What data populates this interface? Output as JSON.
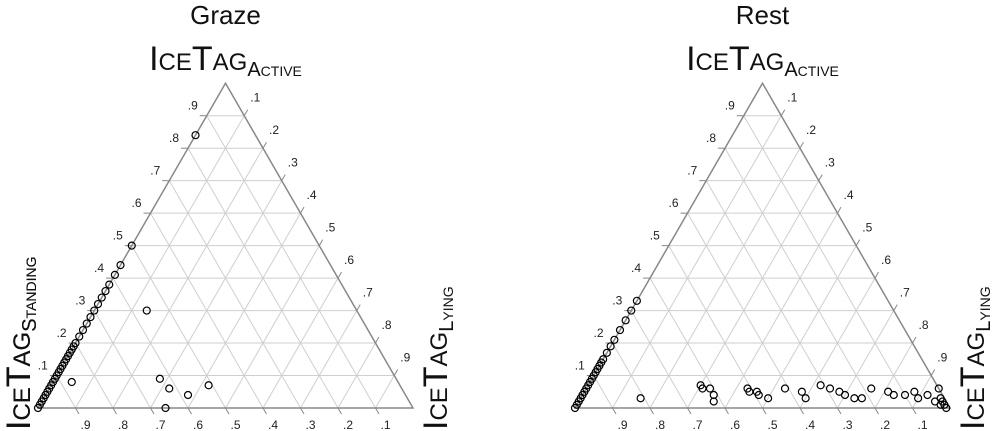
{
  "chart_data": [
    {
      "type": "ternary",
      "title": "Graze",
      "axes": {
        "top": {
          "main": "IceTag",
          "sub": "Active"
        },
        "left": {
          "main": "IceTag",
          "sub": "Standing"
        },
        "right": {
          "main": "IceTag",
          "sub": "Lying"
        }
      },
      "ticks": [
        {
          "value": 0.1,
          "label": ".1"
        },
        {
          "value": 0.2,
          "label": ".2"
        },
        {
          "value": 0.3,
          "label": ".3"
        },
        {
          "value": 0.4,
          "label": ".4"
        },
        {
          "value": 0.5,
          "label": ".5"
        },
        {
          "value": 0.6,
          "label": ".6"
        },
        {
          "value": 0.7,
          "label": ".7"
        },
        {
          "value": 0.8,
          "label": ".8"
        },
        {
          "value": 0.9,
          "label": ".9"
        }
      ],
      "grid": true,
      "active": [
        0,
        0.01,
        0.02,
        0.03,
        0.04,
        0.05,
        0.06,
        0.07,
        0.08,
        0.09,
        0.1,
        0.11,
        0.12,
        0.13,
        0.14,
        0.15,
        0.16,
        0.17,
        0.18,
        0.19,
        0.2,
        0.22,
        0.24,
        0.26,
        0.28,
        0.3,
        0.32,
        0.34,
        0.36,
        0.38,
        0.41,
        0.44,
        0.5,
        0.84,
        0.08,
        0.3,
        0.09,
        0.06,
        0.07,
        0,
        0.04
      ],
      "lying": [
        0,
        0,
        0,
        0,
        0,
        0,
        0,
        0,
        0,
        0,
        0,
        0,
        0,
        0,
        0,
        0,
        0,
        0,
        0,
        0,
        0,
        0,
        0,
        0,
        0,
        0,
        0,
        0,
        0,
        0,
        0,
        0,
        0,
        0,
        0.05,
        0.14,
        0.28,
        0.32,
        0.42,
        0.34,
        0.38
      ]
    },
    {
      "type": "ternary",
      "title": "Rest",
      "axes": {
        "top": {
          "main": "IceTag",
          "sub": "Active"
        },
        "left": {
          "main": "IceTag",
          "sub": "Standing"
        },
        "right": {
          "main": "IceTag",
          "sub": "Lying"
        }
      },
      "ticks": [
        {
          "value": 0.1,
          "label": ".1"
        },
        {
          "value": 0.2,
          "label": ".2"
        },
        {
          "value": 0.3,
          "label": ".3"
        },
        {
          "value": 0.4,
          "label": ".4"
        },
        {
          "value": 0.5,
          "label": ".5"
        },
        {
          "value": 0.6,
          "label": ".6"
        },
        {
          "value": 0.7,
          "label": ".7"
        },
        {
          "value": 0.8,
          "label": ".8"
        },
        {
          "value": 0.9,
          "label": ".9"
        }
      ],
      "grid": true,
      "active": [
        0,
        0.01,
        0.02,
        0.03,
        0.04,
        0.05,
        0.06,
        0.07,
        0.08,
        0.09,
        0.1,
        0.11,
        0.12,
        0.13,
        0.14,
        0.15,
        0.17,
        0.19,
        0.21,
        0.24,
        0.27,
        0.3,
        0.33,
        0.03,
        0.07,
        0.06,
        0.06,
        0.04,
        0.02,
        0.06,
        0.05,
        0.05,
        0.04,
        0.03,
        0.06,
        0.05,
        0.07,
        0.03,
        0.06,
        0.05,
        0.04,
        0.03,
        0.03,
        0.06,
        0.05,
        0.04,
        0.04,
        0.05,
        0.03,
        0.04,
        0.06,
        0.02,
        0.03,
        0.01,
        0.02,
        0,
        0.01
      ],
      "lying": [
        0,
        0,
        0,
        0,
        0,
        0,
        0,
        0,
        0,
        0,
        0,
        0,
        0,
        0,
        0,
        0,
        0,
        0,
        0,
        0,
        0,
        0,
        0,
        0.16,
        0.3,
        0.33,
        0.31,
        0.35,
        0.36,
        0.43,
        0.44,
        0.46,
        0.47,
        0.5,
        0.53,
        0.58,
        0.62,
        0.6,
        0.65,
        0.68,
        0.7,
        0.73,
        0.75,
        0.76,
        0.81,
        0.83,
        0.86,
        0.88,
        0.9,
        0.92,
        0.94,
        0.95,
        0.96,
        0.98,
        0.97,
        0.99,
        0.97
      ]
    }
  ]
}
